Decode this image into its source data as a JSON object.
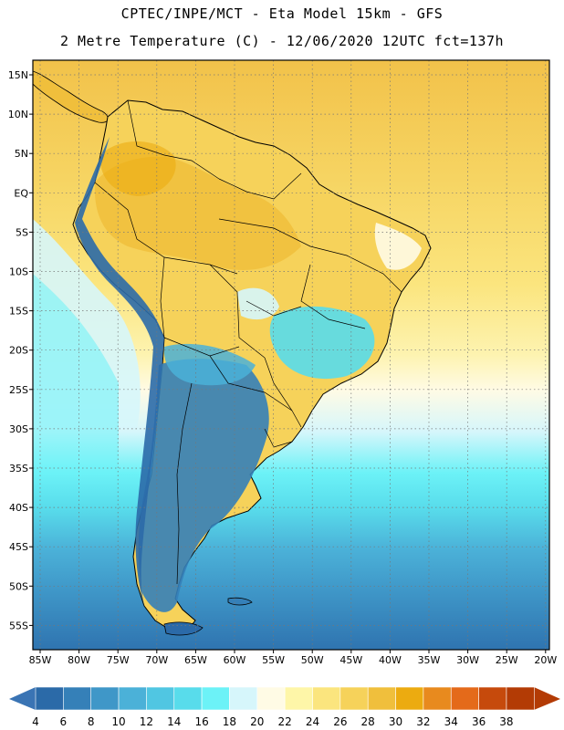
{
  "header": {
    "line1": "CPTEC/INPE/MCT -  Eta Model 15km - GFS",
    "line2": "2 Metre Temperature (C) - 12/06/2020 12UTC fct=137h"
  },
  "map": {
    "lat_labels": [
      "15N",
      "10N",
      "5N",
      "EQ",
      "5S",
      "10S",
      "15S",
      "20S",
      "25S",
      "30S",
      "35S",
      "40S",
      "45S",
      "50S",
      "55S"
    ],
    "lon_labels": [
      "85W",
      "80W",
      "75W",
      "70W",
      "65W",
      "60W",
      "55W",
      "50W",
      "45W",
      "40W",
      "35W",
      "30W",
      "25W",
      "20W"
    ]
  },
  "colorbar": {
    "labels": [
      "4",
      "6",
      "8",
      "10",
      "12",
      "14",
      "16",
      "18",
      "20",
      "22",
      "24",
      "26",
      "28",
      "30",
      "32",
      "34",
      "36",
      "38"
    ],
    "colors": [
      "#2b6aa8",
      "#3580b8",
      "#3f97c8",
      "#4bb1d8",
      "#50c6e2",
      "#58dceb",
      "#6cf2f7",
      "#d6f6fb",
      "#fffbe5",
      "#fef6a8",
      "#fbe57e",
      "#f6d25a",
      "#f0bf3c",
      "#ecab10",
      "#e88a1e",
      "#e46a1a",
      "#c64a0c",
      "#b33b05"
    ]
  }
}
